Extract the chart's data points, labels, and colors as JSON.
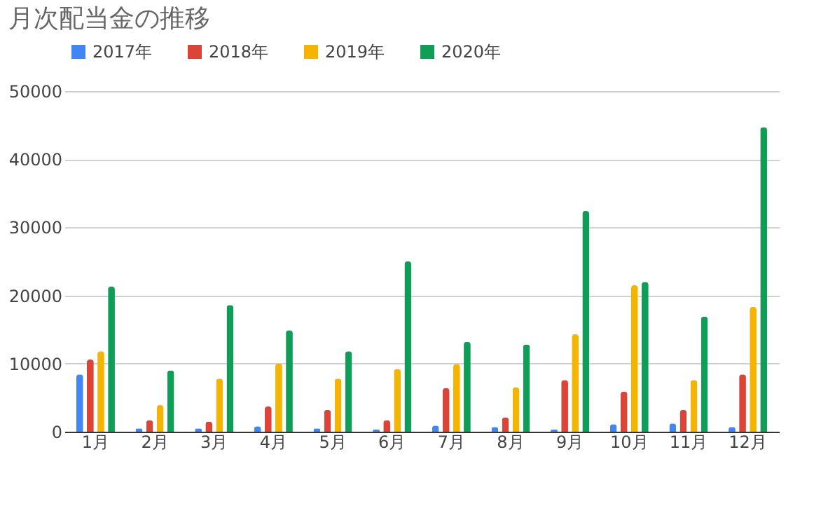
{
  "chart_data": {
    "type": "bar",
    "title": "月次配当金の推移",
    "categories": [
      "1月",
      "2月",
      "3月",
      "4月",
      "5月",
      "6月",
      "7月",
      "8月",
      "9月",
      "10月",
      "11月",
      "12月"
    ],
    "series": [
      {
        "name": "2017年",
        "color": "#4285f4",
        "values": [
          8400,
          500,
          500,
          800,
          500,
          300,
          900,
          700,
          300,
          1100,
          1200,
          700
        ]
      },
      {
        "name": "2018年",
        "color": "#db4437",
        "values": [
          10600,
          1700,
          1500,
          3700,
          3200,
          1700,
          6400,
          2100,
          7600,
          5900,
          3200,
          8400
        ]
      },
      {
        "name": "2019年",
        "color": "#f4b400",
        "values": [
          11800,
          3900,
          7800,
          10000,
          7800,
          9200,
          9900,
          6500,
          14300,
          21500,
          7600,
          18300
        ]
      },
      {
        "name": "2020年",
        "color": "#0f9d58",
        "values": [
          21300,
          9000,
          18600,
          14900,
          11800,
          25000,
          13200,
          12800,
          32400,
          22000,
          16900,
          44700
        ]
      }
    ],
    "ylim": [
      0,
      50000
    ],
    "yticks": [
      0,
      10000,
      20000,
      30000,
      40000,
      50000
    ],
    "grid": "y",
    "legend": "top"
  }
}
